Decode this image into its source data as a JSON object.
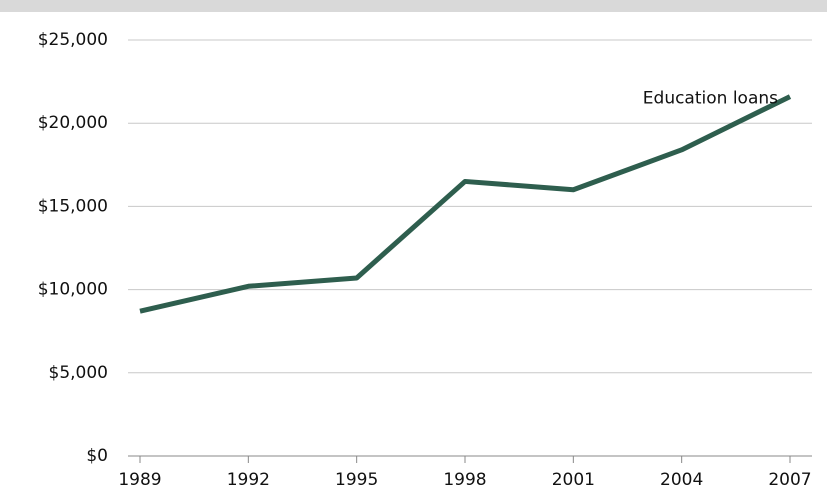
{
  "chart_data": {
    "type": "line",
    "x": [
      1989,
      1992,
      1995,
      1998,
      2001,
      2004,
      2007
    ],
    "series": [
      {
        "name": "Education loans",
        "color": "#2e5e4e",
        "values": [
          8700,
          10200,
          10700,
          16500,
          16000,
          18400,
          21600
        ]
      }
    ],
    "xlim": [
      1989,
      2007
    ],
    "xticks": [
      1989,
      1992,
      1995,
      1998,
      2001,
      2004,
      2007
    ],
    "ylim": [
      0,
      25000
    ],
    "yticks": [
      {
        "value": 0,
        "label": "$0"
      },
      {
        "value": 5000,
        "label": "$5,000"
      },
      {
        "value": 10000,
        "label": "$10,000"
      },
      {
        "value": 15000,
        "label": "$15,000"
      },
      {
        "value": 20000,
        "label": "$20,000"
      },
      {
        "value": 25000,
        "label": "$25,000"
      }
    ],
    "grid": true
  }
}
